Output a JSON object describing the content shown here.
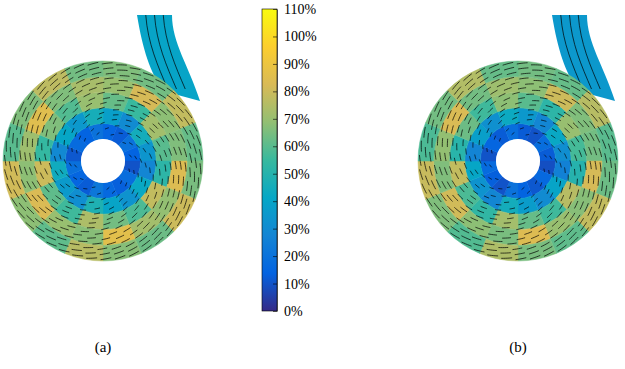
{
  "chart_data": {
    "type": "polar_heatmap",
    "colorbar_range": [
      0,
      110
    ],
    "colorbar_ticks": [
      {
        "value": 0,
        "label": "0%"
      },
      {
        "value": 10,
        "label": "10%"
      },
      {
        "value": 20,
        "label": "20%"
      },
      {
        "value": 30,
        "label": "30%"
      },
      {
        "value": 40,
        "label": "40%"
      },
      {
        "value": 50,
        "label": "50%"
      },
      {
        "value": 60,
        "label": "60%"
      },
      {
        "value": 70,
        "label": "70%"
      },
      {
        "value": 80,
        "label": "80%"
      },
      {
        "value": 90,
        "label": "90%"
      },
      {
        "value": 100,
        "label": "100%"
      },
      {
        "value": 110,
        "label": "110%"
      }
    ],
    "panels": [
      {
        "title": "(a)",
        "outlet": 40,
        "cells": [
          [
            15,
            12,
            20,
            14,
            10,
            18,
            13,
            16,
            22,
            12,
            15,
            19,
            11,
            17,
            14,
            20
          ],
          [
            38,
            30,
            45,
            34,
            28,
            42,
            33,
            40,
            48,
            31,
            36,
            44,
            29,
            41,
            35,
            46
          ],
          [
            62,
            55,
            72,
            60,
            52,
            78,
            58,
            64,
            74,
            56,
            61,
            80,
            54,
            66,
            59,
            70
          ],
          [
            70,
            82,
            68,
            66,
            84,
            69,
            72,
            86,
            67,
            70,
            83,
            68,
            71,
            85,
            66,
            73
          ],
          [
            66,
            64,
            78,
            62,
            65,
            80,
            63,
            67,
            76,
            61,
            68,
            81,
            60,
            66,
            77,
            64
          ]
        ]
      },
      {
        "title": "(b)",
        "outlet": 35,
        "cells": [
          [
            12,
            10,
            18,
            12,
            9,
            16,
            11,
            14,
            20,
            10,
            13,
            17,
            10,
            15,
            12,
            18
          ],
          [
            35,
            28,
            42,
            31,
            26,
            40,
            30,
            37,
            45,
            28,
            33,
            41,
            27,
            38,
            32,
            43
          ],
          [
            60,
            52,
            70,
            57,
            50,
            76,
            56,
            62,
            72,
            53,
            58,
            78,
            51,
            63,
            56,
            68
          ],
          [
            68,
            80,
            66,
            64,
            82,
            67,
            70,
            84,
            65,
            68,
            81,
            66,
            69,
            83,
            64,
            71
          ],
          [
            64,
            62,
            76,
            60,
            63,
            78,
            61,
            65,
            74,
            59,
            66,
            79,
            58,
            64,
            75,
            62
          ]
        ]
      }
    ]
  }
}
